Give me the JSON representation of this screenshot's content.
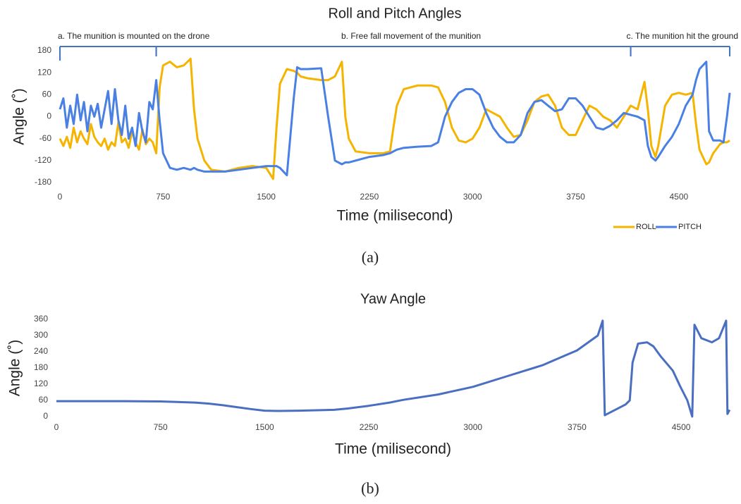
{
  "chart_data": [
    {
      "type": "line",
      "title": "Roll and Pitch Angles",
      "x_label": "Time (milisecond)",
      "y_label": "Angle (˚)",
      "caption": "(a)",
      "xlim": [
        0,
        4870
      ],
      "xticks": [
        0,
        750,
        1500,
        2250,
        3000,
        3750,
        4500
      ],
      "ylim": [
        -180,
        180
      ],
      "yticks": [
        -180,
        -120,
        -60,
        0,
        60,
        120,
        180
      ],
      "grid": false,
      "legend": "bottom-right",
      "annotations": [
        {
          "text": "a. The munition is mounted on the drone",
          "start": 0,
          "end": 700
        },
        {
          "text": "b. Free fall movement of the munition",
          "start": 700,
          "end": 4150
        },
        {
          "text": "c. The munition hit the ground",
          "start": 4150,
          "end": 4870
        }
      ],
      "x": [
        0,
        25,
        50,
        75,
        100,
        125,
        150,
        175,
        200,
        225,
        250,
        275,
        300,
        325,
        350,
        375,
        400,
        425,
        450,
        475,
        500,
        525,
        550,
        575,
        600,
        625,
        650,
        675,
        700,
        725,
        750,
        800,
        850,
        900,
        950,
        975,
        1000,
        1050,
        1100,
        1200,
        1300,
        1400,
        1500,
        1550,
        1575,
        1600,
        1650,
        1700,
        1725,
        1750,
        1800,
        1900,
        1950,
        2000,
        2050,
        2075,
        2100,
        2150,
        2250,
        2350,
        2400,
        2425,
        2450,
        2500,
        2600,
        2700,
        2750,
        2800,
        2850,
        2900,
        2950,
        3000,
        3050,
        3100,
        3150,
        3200,
        3250,
        3300,
        3350,
        3400,
        3450,
        3500,
        3550,
        3600,
        3650,
        3700,
        3750,
        3800,
        3850,
        3900,
        3950,
        4000,
        4050,
        4100,
        4150,
        4200,
        4250,
        4275,
        4300,
        4330,
        4350,
        4400,
        4450,
        4500,
        4550,
        4600,
        4625,
        4650,
        4700,
        4720,
        4750,
        4800,
        4825,
        4850,
        4870
      ],
      "series": [
        {
          "name": "ROLL",
          "color": "#f4b400",
          "values": [
            -60,
            -80,
            -55,
            -85,
            -30,
            -70,
            -40,
            -60,
            -75,
            -20,
            -55,
            -70,
            -80,
            -60,
            -90,
            -70,
            -80,
            -15,
            -70,
            -60,
            -85,
            -40,
            -70,
            -90,
            -35,
            -75,
            -60,
            -70,
            -100,
            80,
            140,
            150,
            135,
            140,
            158,
            20,
            -60,
            -120,
            -145,
            -150,
            -140,
            -135,
            -140,
            -170,
            -30,
            90,
            130,
            125,
            120,
            110,
            105,
            100,
            100,
            110,
            150,
            0,
            -60,
            -95,
            -100,
            -100,
            -95,
            -30,
            30,
            75,
            85,
            85,
            80,
            40,
            -30,
            -65,
            -70,
            -60,
            -30,
            20,
            10,
            0,
            -30,
            -55,
            -50,
            -10,
            40,
            55,
            60,
            30,
            -30,
            -50,
            -50,
            -10,
            30,
            20,
            0,
            -10,
            -30,
            0,
            30,
            20,
            95,
            20,
            -80,
            -110,
            -80,
            30,
            60,
            65,
            60,
            65,
            -20,
            -90,
            -130,
            -125,
            -100,
            -75,
            -70,
            -70,
            -65
          ]
        },
        {
          "name": "PITCH",
          "color": "#4a80e3",
          "values": [
            20,
            50,
            -30,
            30,
            -20,
            60,
            -10,
            40,
            -40,
            30,
            0,
            35,
            -30,
            20,
            70,
            -20,
            75,
            -10,
            -50,
            30,
            -60,
            -30,
            -80,
            10,
            -40,
            -70,
            40,
            20,
            100,
            -10,
            -100,
            -140,
            -145,
            -140,
            -145,
            -140,
            -145,
            -150,
            -150,
            -150,
            -145,
            -140,
            -135,
            -135,
            -135,
            -140,
            -160,
            50,
            135,
            130,
            130,
            132,
            0,
            -120,
            -130,
            -125,
            -125,
            -120,
            -110,
            -105,
            -100,
            -95,
            -90,
            -85,
            -82,
            -80,
            -70,
            0,
            40,
            65,
            75,
            75,
            60,
            10,
            -30,
            -55,
            -70,
            -70,
            -50,
            10,
            40,
            45,
            30,
            15,
            20,
            50,
            50,
            30,
            0,
            -30,
            -35,
            -25,
            -10,
            10,
            5,
            0,
            -10,
            -80,
            -110,
            -120,
            -110,
            -80,
            -55,
            -20,
            30,
            60,
            100,
            130,
            150,
            -40,
            -65,
            -65,
            -70,
            0,
            65
          ]
        }
      ]
    },
    {
      "type": "line",
      "title": "Yaw Angle",
      "x_label": "Time (milisecond)",
      "y_label": "Angle (˚)",
      "caption": "(b)",
      "xlim": [
        0,
        4850
      ],
      "xticks": [
        0,
        750,
        1500,
        2250,
        3000,
        3750,
        4500
      ],
      "ylim": [
        0,
        360
      ],
      "yticks": [
        0,
        60,
        120,
        180,
        240,
        300,
        360
      ],
      "grid": false,
      "x": [
        0,
        250,
        500,
        750,
        1000,
        1100,
        1200,
        1300,
        1400,
        1500,
        1600,
        1750,
        2000,
        2100,
        2250,
        2400,
        2500,
        2750,
        3000,
        3250,
        3500,
        3750,
        3900,
        3935,
        3950,
        4100,
        4130,
        4150,
        4190,
        4255,
        4300,
        4350,
        4440,
        4495,
        4545,
        4580,
        4596,
        4646,
        4722,
        4773,
        4824,
        4834,
        4849
      ],
      "series": [
        {
          "name": "YAW",
          "color": "#4a6fc0",
          "values": [
            57,
            57,
            57,
            56,
            52,
            48,
            42,
            35,
            28,
            22,
            21,
            22,
            25,
            30,
            40,
            52,
            62,
            82,
            110,
            150,
            190,
            245,
            300,
            355,
            5,
            45,
            60,
            200,
            270,
            275,
            260,
            225,
            170,
            110,
            60,
            0,
            340,
            290,
            275,
            290,
            355,
            10,
            25
          ]
        }
      ]
    }
  ]
}
